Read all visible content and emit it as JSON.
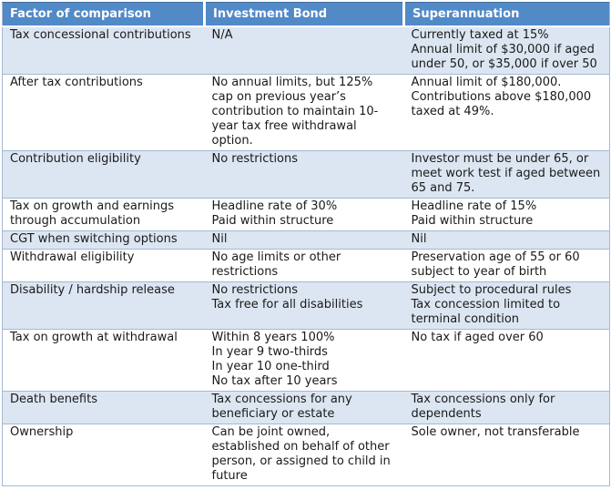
{
  "table": {
    "columns": {
      "factor": "Factor of comparison",
      "investment_bond": "Investment Bond",
      "superannuation": "Superannuation"
    },
    "rows": [
      {
        "factor": "Tax concessional contributions",
        "investment_bond": "N/A",
        "superannuation": "Currently taxed at 15%\nAnnual limit of $30,000 if aged under 50, or $35,000 if over 50"
      },
      {
        "factor": "After tax contributions",
        "investment_bond": "No annual limits, but 125% cap on previous year’s contribution to maintain 10-year tax free withdrawal option.",
        "superannuation": "Annual limit of $180,000. Contributions above $180,000 taxed at 49%."
      },
      {
        "factor": "Contribution eligibility",
        "investment_bond": "No restrictions",
        "superannuation": "Investor must be under 65, or meet work test if aged between 65 and 75."
      },
      {
        "factor": "Tax on growth and earnings through accumulation",
        "investment_bond": "Headline rate of 30%\nPaid within structure",
        "superannuation": "Headline rate of 15%\nPaid within structure"
      },
      {
        "factor": "CGT when switching options",
        "investment_bond": "Nil",
        "superannuation": "Nil"
      },
      {
        "factor": "Withdrawal eligibility",
        "investment_bond": "No age limits or other restrictions",
        "superannuation": "Preservation age of 55 or 60 subject to year of birth"
      },
      {
        "factor": "Disability / hardship release",
        "investment_bond": "No restrictions\nTax free for all disabilities",
        "superannuation": "Subject to procedural rules\nTax concession limited to terminal condition"
      },
      {
        "factor": "Tax on growth at withdrawal",
        "investment_bond": "Within 8 years 100%\nIn year 9 two-thirds\nIn year 10 one-third\nNo tax after 10 years",
        "superannuation": "No tax if aged over 60"
      },
      {
        "factor": "Death benefits",
        "investment_bond": "Tax concessions for any beneficiary or estate",
        "superannuation": "Tax concessions only for dependents"
      },
      {
        "factor": "Ownership",
        "investment_bond": "Can be joint owned, established on behalf of other person, or assigned to child in future",
        "superannuation": "Sole owner, not transferable"
      }
    ]
  },
  "colors": {
    "header_bg": "#5289C7",
    "header_text": "#FFFFFF",
    "alt_row_bg": "#DCE6F2",
    "row_bg": "#FFFFFF",
    "border": "#A4B9D2",
    "text": "#1A1A1A"
  }
}
